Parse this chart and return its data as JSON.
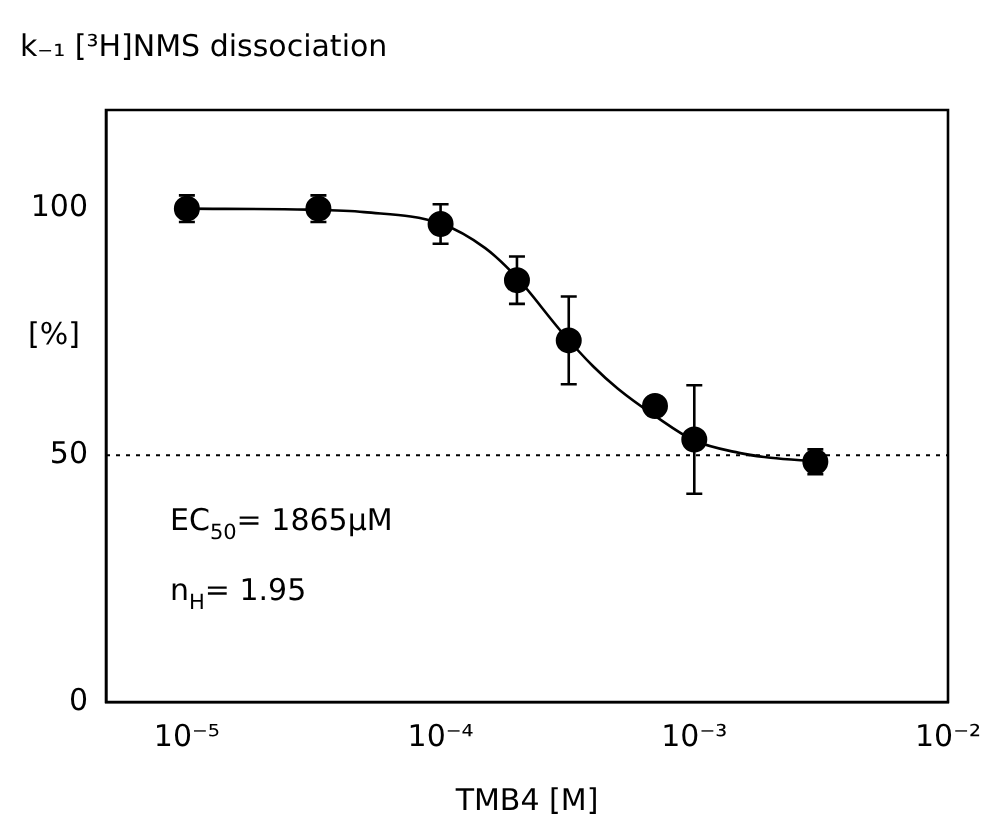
{
  "chart_data": {
    "type": "scatter",
    "title": "k₋₁ [³H]NMS dissociation",
    "xlabel": "TMB4 [M]",
    "ylabel": "[%]",
    "log": "x",
    "xlim": [
      4.8e-06,
      0.01
    ],
    "xticks": [
      {
        "value": 1e-05,
        "label": "10⁻⁵"
      },
      {
        "value": 0.0001,
        "label": "10⁻⁴"
      },
      {
        "value": 0.001,
        "label": "10⁻³"
      },
      {
        "value": 0.01,
        "label": "10⁻²"
      }
    ],
    "ylim": [
      0,
      120
    ],
    "yticks": [
      0,
      50,
      100
    ],
    "grid": false,
    "legend": false,
    "marker": "circle",
    "ref_lines": [
      {
        "axis": "y",
        "value": 50,
        "line_style": "dotted",
        "color": "#000000"
      }
    ],
    "annotations": [
      "EC$_{50}$= 1865µM",
      "n$_{H}$= 1.95"
    ],
    "series": [
      {
        "color": "#000000",
        "x": [
          1e-05,
          3.3e-05,
          0.0001,
          0.0002,
          0.00032,
          0.0007,
          0.001,
          0.003
        ],
        "values": [
          100,
          100,
          96.9,
          85.5,
          73.3,
          60,
          53.2,
          48.7
        ],
        "errors": [
          2.7,
          2.7,
          4,
          4.8,
          8.9,
          1.8,
          11,
          2.5
        ]
      },
      {
        "type": "line",
        "color": "#000000",
        "marker": "none",
        "x": [
          1e-05,
          3e-05,
          5e-05,
          0.0001,
          0.00015,
          0.0002,
          0.0003,
          0.0004,
          0.0005,
          0.0007,
          0.001,
          0.0015,
          0.002,
          0.003
        ],
        "values": [
          100,
          99.8,
          99.3,
          97,
          92,
          86,
          75,
          68,
          63.5,
          58,
          53,
          50.5,
          49.5,
          48.8
        ]
      }
    ]
  }
}
